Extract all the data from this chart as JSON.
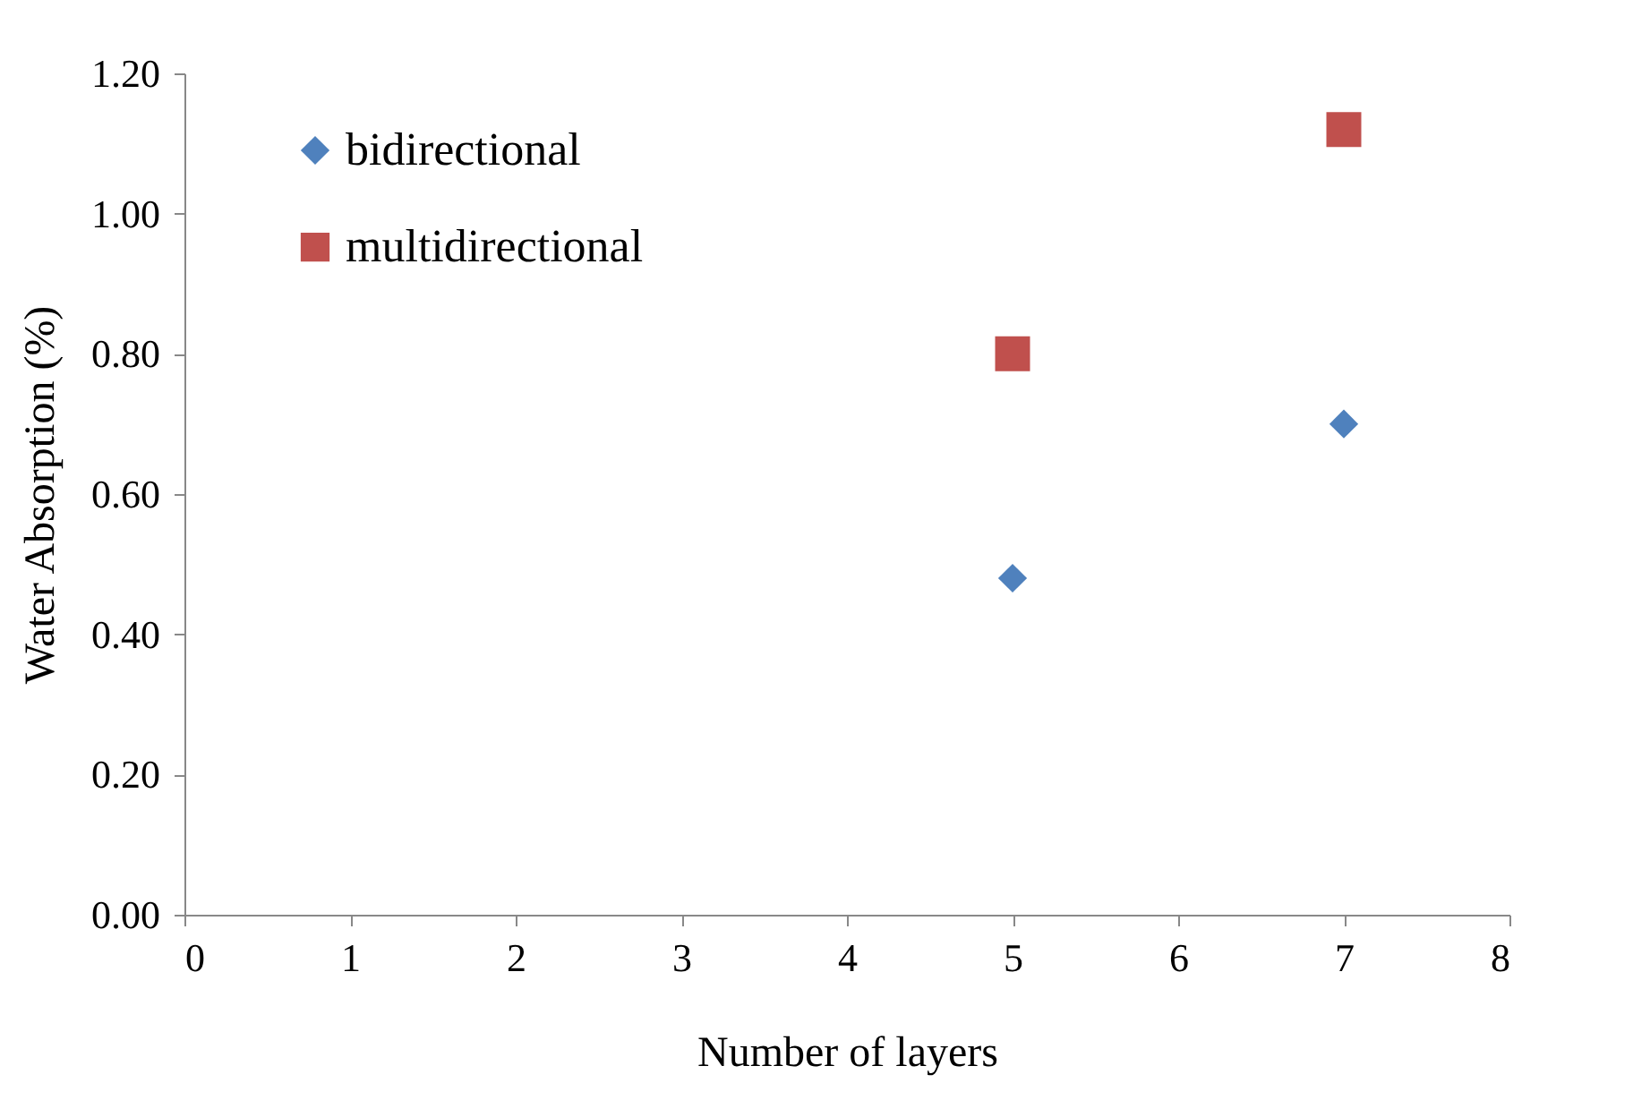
{
  "chart_data": {
    "type": "scatter",
    "xlabel": "Number of layers",
    "ylabel": "Water Absorption (%)",
    "x": [
      5,
      7
    ],
    "series": [
      {
        "name": "bidirectional",
        "color": "#4f81bd",
        "marker": "diamond",
        "values": [
          0.48,
          0.7
        ]
      },
      {
        "name": "multidirectional",
        "color": "#c0504d",
        "marker": "square",
        "values": [
          0.8,
          1.12
        ]
      }
    ],
    "xlim": [
      0,
      8
    ],
    "xticks": [
      0,
      1,
      2,
      3,
      4,
      5,
      6,
      7,
      8
    ],
    "ylim": [
      0,
      1.2
    ],
    "yticks": [
      {
        "value": 0,
        "label": "0.00"
      },
      {
        "value": 0.2,
        "label": "0.20"
      },
      {
        "value": 0.4,
        "label": "0.40"
      },
      {
        "value": 0.6,
        "label": "0.60"
      },
      {
        "value": 0.8,
        "label": "0.80"
      },
      {
        "value": 1.0,
        "label": "1.00"
      },
      {
        "value": 1.2,
        "label": "1.20"
      }
    ],
    "grid": false,
    "legend": "top left"
  }
}
